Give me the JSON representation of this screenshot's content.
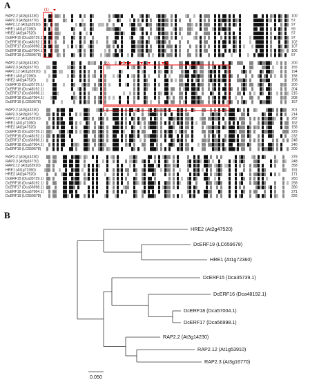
{
  "panel_a": {
    "label": "A",
    "motif_labels": [
      "(1)",
      "(2)"
    ],
    "blocks": [
      {
        "rows": [
          {
            "name": "RAP2.2 (At3g14230)",
            "end": 100
          },
          {
            "name": "RAP2.3 (At3g16770)",
            "end": 57
          },
          {
            "name": "RAP2.12 (At1g53910)",
            "end": 97
          },
          {
            "name": "HRE1 (At1g72360)",
            "end": 59
          },
          {
            "name": "HRE2 (At2g47520)",
            "end": 57
          },
          {
            "name": "DcERF15 (Dca35739.1)",
            "end": 97
          },
          {
            "name": "DcERF16 (Dca48192.1)",
            "end": 102
          },
          {
            "name": "DcERF17 (Dca56998.1)",
            "end": 107
          },
          {
            "name": "DcERF18 (Dca57004.1)",
            "end": 106
          },
          {
            "name": "DcERF19 (LC659678)",
            "end": 57
          }
        ]
      },
      {
        "rows": [
          {
            "name": "RAP2.2 (At3g14230)",
            "end": 200
          },
          {
            "name": "RAP2.3 (At3g16770)",
            "end": 155
          },
          {
            "name": "RAP2.12 (At1g53910)",
            "end": 194
          },
          {
            "name": "HRE1 (At1g72360)",
            "end": 158
          },
          {
            "name": "HRE2 (At2g47520)",
            "end": 158
          },
          {
            "name": "DcERF15 (Dca35739.1)",
            "end": 200
          },
          {
            "name": "DcERF16 (Dca48192.1)",
            "end": 204
          },
          {
            "name": "DcERF17 (Dca56998.1)",
            "end": 215
          },
          {
            "name": "DcERF18 (Dca57004.1)",
            "end": 208
          },
          {
            "name": "DcERF19 (LC659678)",
            "end": 157
          }
        ]
      },
      {
        "rows": [
          {
            "name": "RAP2.2 (At3g14230)",
            "end": 301
          },
          {
            "name": "RAP2.3 (At3g16770)",
            "end": 214
          },
          {
            "name": "RAP2.12 (At1g53910)",
            "end": 282
          },
          {
            "name": "HRE1 (At1g72360)",
            "end": 162
          },
          {
            "name": "HRE2 (At2g47520)",
            "end": 158
          },
          {
            "name": "DcERF15 (Dca35739.1)",
            "end": 229
          },
          {
            "name": "DcERF16 (Dca48192.1)",
            "end": 232
          },
          {
            "name": "DcERF17 (Dca56998.1)",
            "end": 248
          },
          {
            "name": "DcERF18 (Dca57004.1)",
            "end": 240
          },
          {
            "name": "DcERF19 (LC659678)",
            "end": 200
          }
        ]
      },
      {
        "rows": [
          {
            "name": "RAP2.2 (At3g14230)",
            "end": 379
          },
          {
            "name": "RAP2.3 (At3g16770)",
            "end": 248
          },
          {
            "name": "RAP2.12 (At1g53910)",
            "end": 358
          },
          {
            "name": "HRE1 (At1g72360)",
            "end": 191
          },
          {
            "name": "HRE2 (At2g47520)",
            "end": 171
          },
          {
            "name": "DcERF15 (Dca35739.1)",
            "end": 260
          },
          {
            "name": "DcERF16 (Dca48192.1)",
            "end": 258
          },
          {
            "name": "DcERF17 (Dca56998.1)",
            "end": 280
          },
          {
            "name": "DcERF18 (Dca57004.1)",
            "end": 271
          },
          {
            "name": "DcERF19 (LC659678)",
            "end": 226
          }
        ]
      }
    ]
  },
  "panel_b": {
    "label": "B",
    "leaves": [
      "HRE2 (At2g47520)",
      "DcERF19 (LC659678)",
      "HRE1 (At1g72360)",
      "DcERF15 (Dca35739.1)",
      "DcERF16 (Dca48192.1)",
      "DcERF18 (Dca57004.1)",
      "DcERF17 (Dca56998.1)",
      "RAP2.2 (At3g14230)",
      "RAP2.12 (At1g53910)",
      "RAP2.3 (At3g16770)"
    ],
    "scale_label": "0.050"
  }
}
